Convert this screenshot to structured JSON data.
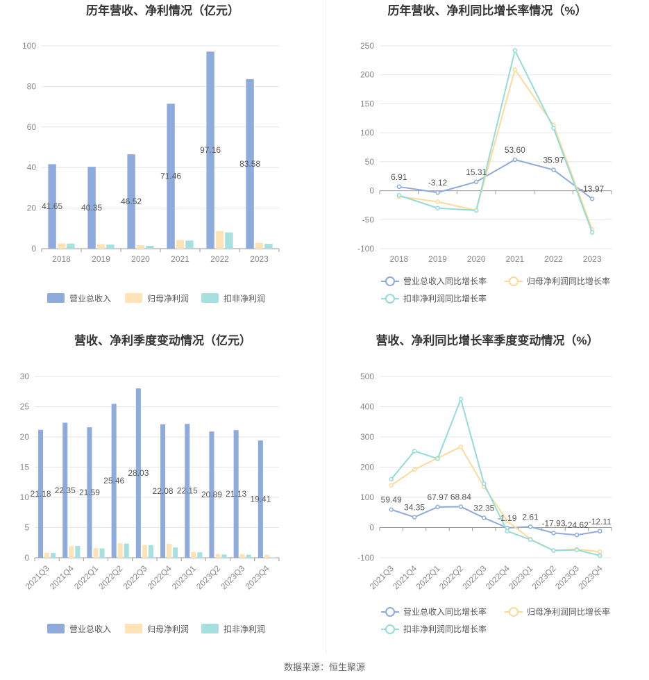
{
  "colors": {
    "revenue": "#8fabdc",
    "net_profit": "#fde3b5",
    "deducted_profit": "#a6e1df",
    "revenue_line": "#8fabdc",
    "net_profit_line": "#fdd99a",
    "deducted_profit_line": "#93dcd8",
    "grid": "#e6e6e6",
    "axis": "#cccccc"
  },
  "source": "数据来源：恒生聚源",
  "chart_data": [
    {
      "id": "annual-bar",
      "type": "bar",
      "title": "历年营收、净利情况（亿元）",
      "categories": [
        "2018",
        "2019",
        "2020",
        "2021",
        "2022",
        "2023"
      ],
      "ylim": [
        0,
        100
      ],
      "yticks": [
        0,
        20,
        40,
        60,
        80,
        100
      ],
      "grid": true,
      "legend_position": "bottom",
      "series": [
        {
          "name": "营业总收入",
          "values": [
            41.65,
            40.35,
            46.52,
            71.46,
            97.16,
            83.58
          ],
          "labels": [
            "41.65",
            "40.35",
            "46.52",
            "71.46",
            "97.16",
            "83.58"
          ]
        },
        {
          "name": "归母净利润",
          "values": [
            2.6,
            2.2,
            1.7,
            4.3,
            8.7,
            2.8
          ]
        },
        {
          "name": "扣非净利润",
          "values": [
            2.5,
            2.0,
            1.4,
            4.0,
            8.0,
            2.4
          ]
        }
      ]
    },
    {
      "id": "annual-line",
      "type": "line",
      "title": "历年营收、净利同比增长率情况（%）",
      "categories": [
        "2018",
        "2019",
        "2020",
        "2021",
        "2022",
        "2023"
      ],
      "ylim": [
        -100,
        250
      ],
      "yticks": [
        -100,
        -50,
        0,
        50,
        100,
        150,
        200,
        250
      ],
      "grid": true,
      "legend_position": "bottom",
      "series": [
        {
          "name": "营业总收入同比增长率",
          "values": [
            6.91,
            -3.12,
            15.31,
            53.6,
            35.97,
            -13.97
          ],
          "labels": [
            "6.91",
            "-3.12",
            "15.31",
            "53.60",
            "35.97",
            "-13.97"
          ]
        },
        {
          "name": "归母净利润同比增长率",
          "values": [
            -10,
            -19,
            -34,
            209,
            113,
            -67
          ]
        },
        {
          "name": "扣非净利润同比增长率",
          "values": [
            -8,
            -30,
            -34,
            242,
            108,
            -72
          ]
        }
      ]
    },
    {
      "id": "quarterly-bar",
      "type": "bar",
      "title": "营收、净利季度变动情况（亿元）",
      "categories": [
        "2021Q3",
        "2021Q4",
        "2022Q1",
        "2022Q2",
        "2022Q3",
        "2022Q4",
        "2023Q1",
        "2023Q2",
        "2023Q3",
        "2023Q4"
      ],
      "ylim": [
        0,
        30
      ],
      "yticks": [
        0,
        5,
        10,
        15,
        20,
        25,
        30
      ],
      "grid": true,
      "legend_position": "bottom",
      "series": [
        {
          "name": "营业总收入",
          "values": [
            21.18,
            22.35,
            21.59,
            25.46,
            28.03,
            22.08,
            22.15,
            20.89,
            21.13,
            19.41
          ],
          "labels": [
            "21.18",
            "22.35",
            "21.59",
            "25.46",
            "28.03",
            "22.08",
            "22.15",
            "20.89",
            "21.13",
            "19.41"
          ]
        },
        {
          "name": "归母净利润",
          "values": [
            0.85,
            1.95,
            1.6,
            2.4,
            2.1,
            2.3,
            1.0,
            0.6,
            0.6,
            0.5
          ]
        },
        {
          "name": "扣非净利润",
          "values": [
            0.8,
            1.95,
            1.55,
            2.35,
            2.1,
            1.7,
            0.9,
            0.55,
            0.5,
            0.05
          ]
        }
      ]
    },
    {
      "id": "quarterly-line",
      "type": "line",
      "title": "营收、净利同比增长率季度变动情况（%）",
      "categories": [
        "2021Q3",
        "2021Q4",
        "2022Q1",
        "2022Q2",
        "2022Q3",
        "2022Q4",
        "2023Q1",
        "2023Q2",
        "2023Q3",
        "2023Q4"
      ],
      "ylim": [
        -100,
        500
      ],
      "yticks": [
        -100,
        0,
        100,
        200,
        300,
        400,
        500
      ],
      "grid": true,
      "legend_position": "bottom",
      "series": [
        {
          "name": "营业总收入同比增长率",
          "values": [
            59.49,
            34.35,
            67.97,
            68.84,
            32.35,
            -1.19,
            2.61,
            -17.93,
            -24.62,
            -12.11
          ],
          "labels": [
            "59.49",
            "34.35",
            "67.97",
            "68.84",
            "32.35",
            "-1.19",
            "2.61",
            "-17.93",
            "-24.62",
            "-12.11"
          ]
        },
        {
          "name": "归母净利润同比增长率",
          "values": [
            140,
            192,
            230,
            267,
            135,
            22,
            -38,
            -76,
            -72,
            -80
          ]
        },
        {
          "name": "扣非净利润同比增长率",
          "values": [
            160,
            253,
            228,
            425,
            145,
            -12,
            -40,
            -76,
            -74,
            -93
          ]
        }
      ]
    }
  ]
}
